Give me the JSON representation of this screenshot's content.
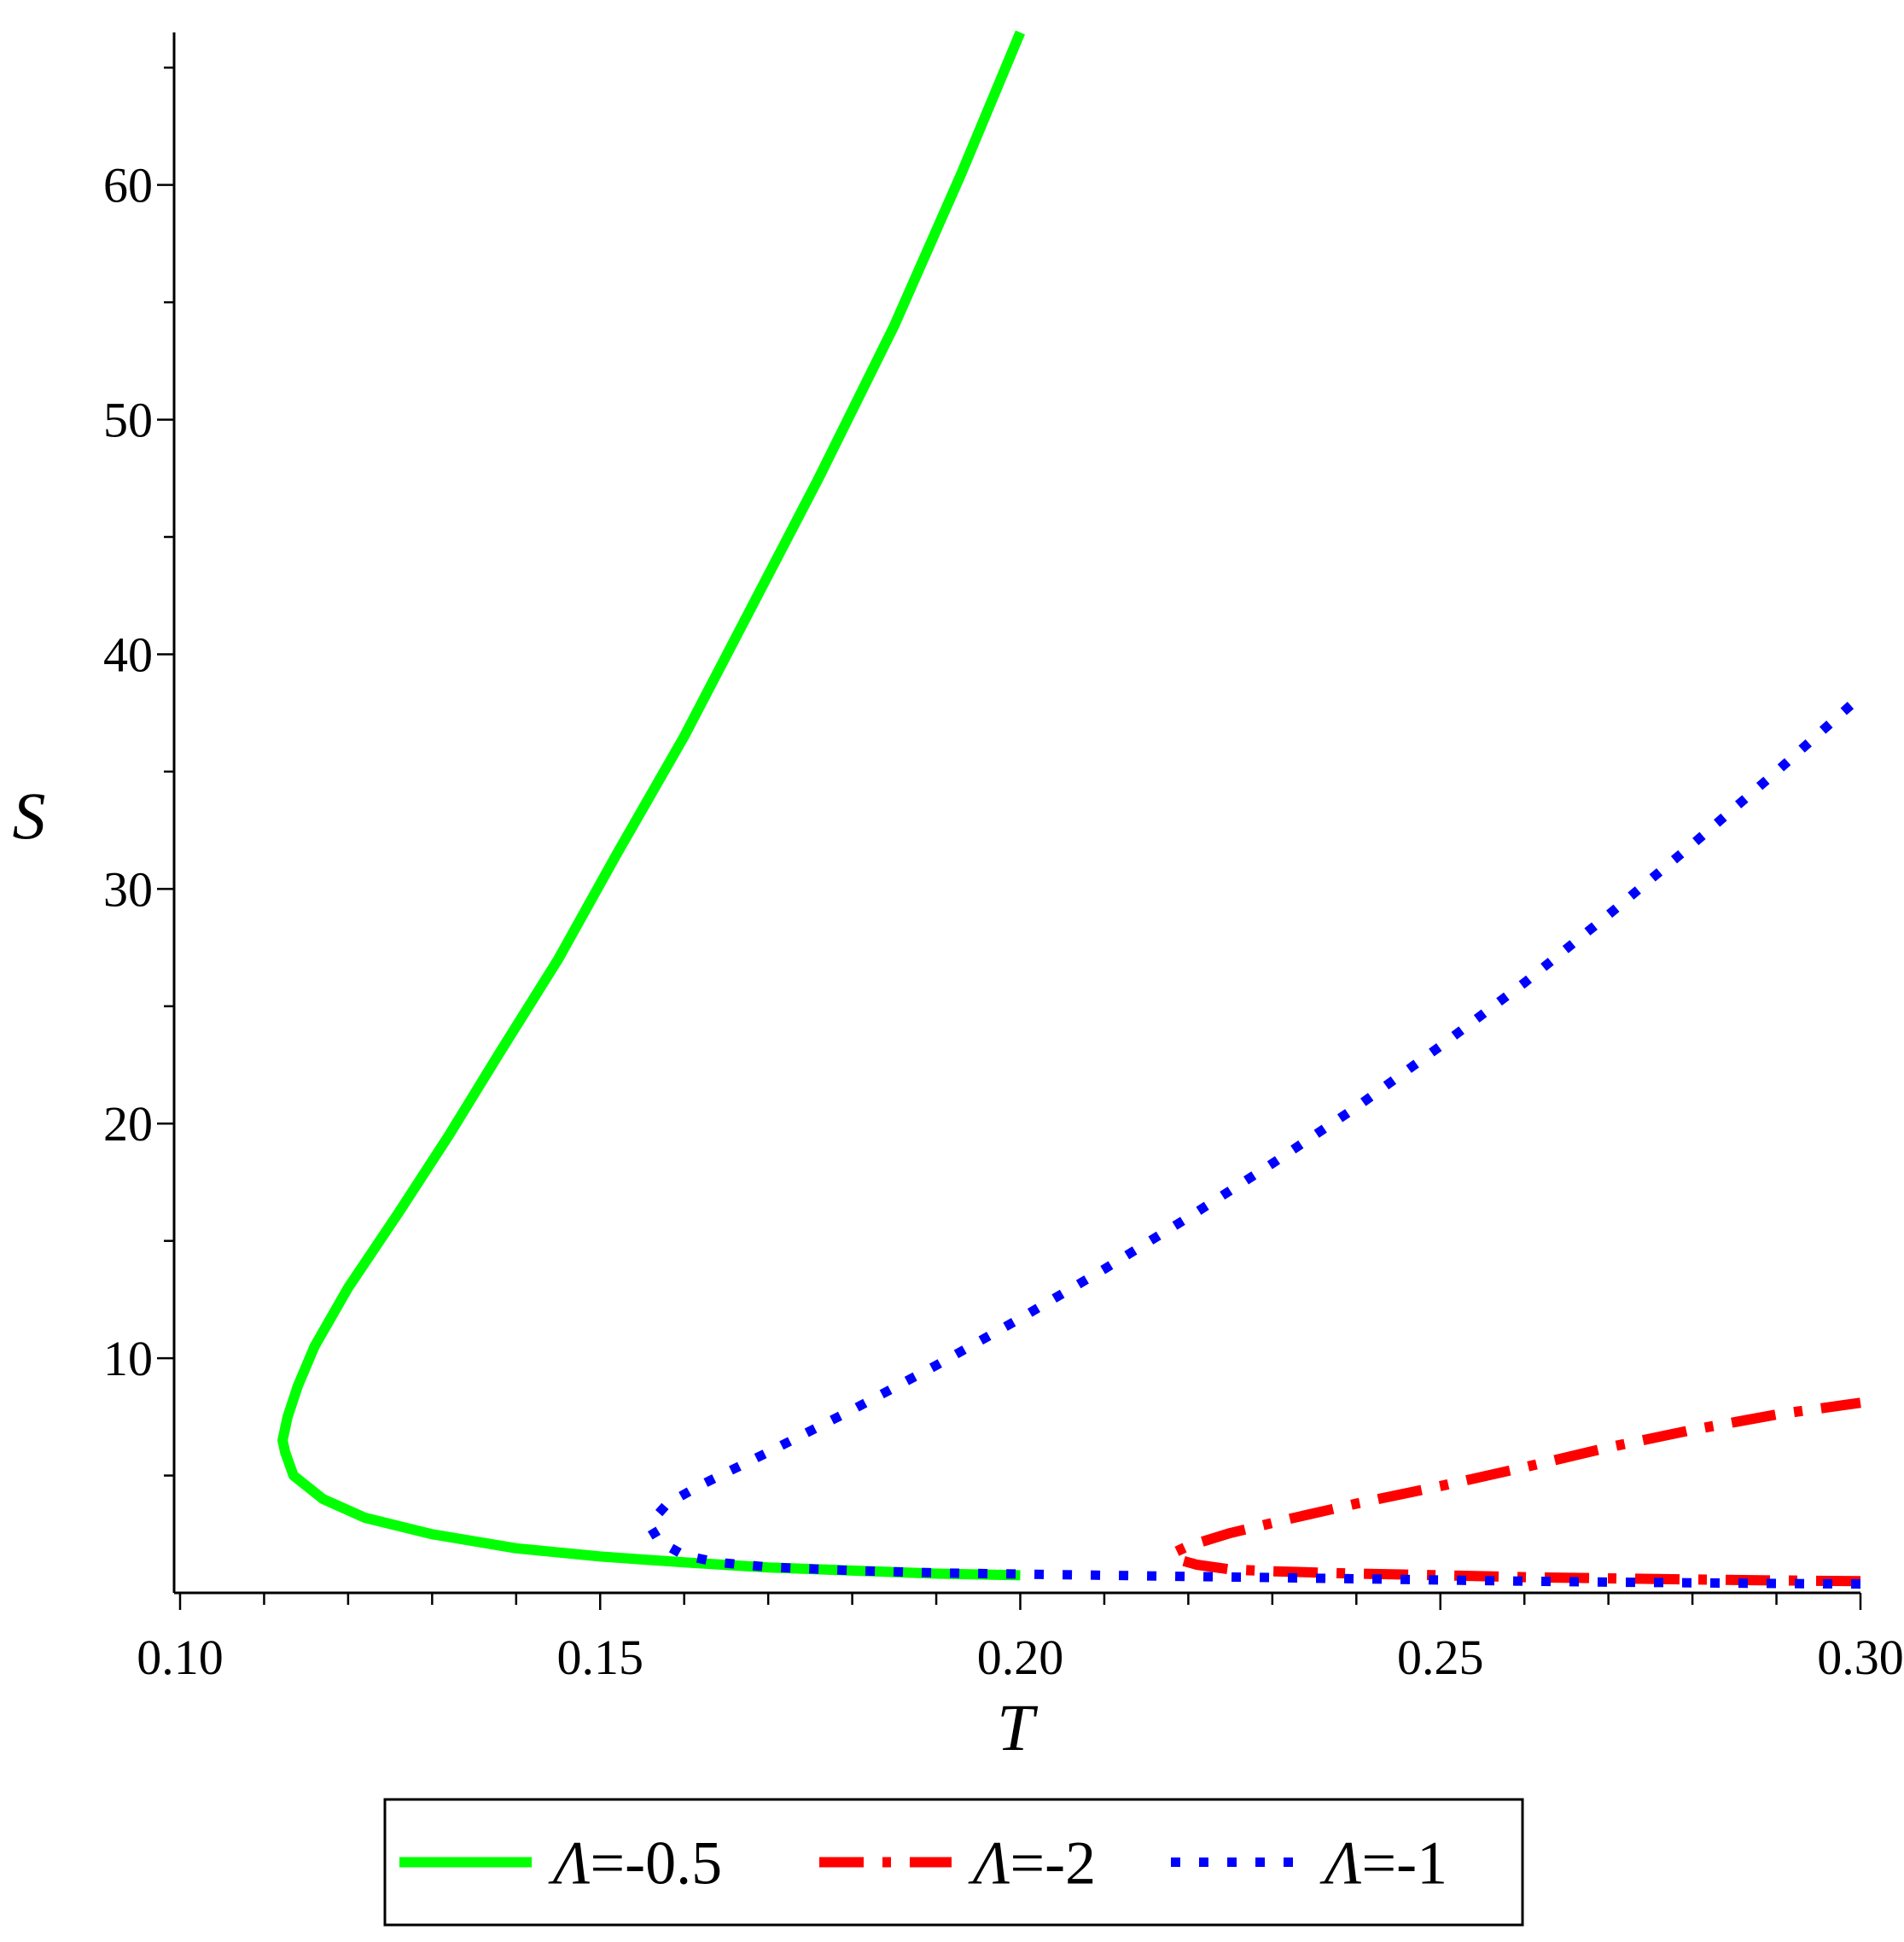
{
  "chart_data": {
    "type": "line",
    "xlabel": "T",
    "ylabel": "S",
    "xlim": [
      0.1,
      0.3
    ],
    "ylim": [
      0,
      66.5
    ],
    "x_ticks": [
      {
        "value": 0.1,
        "label": "0.10"
      },
      {
        "value": 0.15,
        "label": "0.15"
      },
      {
        "value": 0.2,
        "label": "0.20"
      },
      {
        "value": 0.25,
        "label": "0.25"
      },
      {
        "value": 0.3,
        "label": "0.30"
      }
    ],
    "y_ticks": [
      {
        "value": 10,
        "label": "10"
      },
      {
        "value": 20,
        "label": "20"
      },
      {
        "value": 30,
        "label": "30"
      },
      {
        "value": 40,
        "label": "40"
      },
      {
        "value": 50,
        "label": "50"
      },
      {
        "value": 60,
        "label": "60"
      }
    ],
    "grid": false,
    "legend_position": "bottom",
    "series": [
      {
        "name": "Λ=-0.5",
        "legend_symbol": "Λ",
        "legend_value": "=-0.5",
        "color": "#00ff00",
        "style": "solid",
        "points": [
          [
            0.2,
            0.75
          ],
          [
            0.19,
            0.82
          ],
          [
            0.18,
            0.95
          ],
          [
            0.17,
            1.08
          ],
          [
            0.16,
            1.3
          ],
          [
            0.15,
            1.55
          ],
          [
            0.14,
            1.9
          ],
          [
            0.13,
            2.5
          ],
          [
            0.122,
            3.2
          ],
          [
            0.117,
            4.0
          ],
          [
            0.1135,
            5.0
          ],
          [
            0.1125,
            6.0
          ],
          [
            0.1122,
            6.5
          ],
          [
            0.1128,
            7.5
          ],
          [
            0.114,
            8.8
          ],
          [
            0.116,
            10.5
          ],
          [
            0.12,
            13.0
          ],
          [
            0.126,
            16.2
          ],
          [
            0.132,
            19.5
          ],
          [
            0.138,
            23.0
          ],
          [
            0.145,
            27.0
          ],
          [
            0.152,
            31.5
          ],
          [
            0.16,
            36.5
          ],
          [
            0.168,
            42.0
          ],
          [
            0.176,
            47.5
          ],
          [
            0.185,
            54.0
          ],
          [
            0.193,
            60.5
          ],
          [
            0.2,
            66.5
          ]
        ]
      },
      {
        "name": "Λ=-2",
        "legend_symbol": "Λ",
        "legend_value": "=-2",
        "color": "#ff0000",
        "style": "dashdot",
        "points": [
          [
            0.3,
            0.5
          ],
          [
            0.29,
            0.53
          ],
          [
            0.28,
            0.57
          ],
          [
            0.27,
            0.62
          ],
          [
            0.26,
            0.67
          ],
          [
            0.25,
            0.75
          ],
          [
            0.24,
            0.82
          ],
          [
            0.23,
            0.92
          ],
          [
            0.225,
            1.0
          ],
          [
            0.221,
            1.2
          ],
          [
            0.2185,
            1.45
          ],
          [
            0.2182,
            1.7
          ],
          [
            0.22,
            2.0
          ],
          [
            0.225,
            2.55
          ],
          [
            0.232,
            3.15
          ],
          [
            0.24,
            3.8
          ],
          [
            0.25,
            4.55
          ],
          [
            0.26,
            5.35
          ],
          [
            0.27,
            6.2
          ],
          [
            0.28,
            6.95
          ],
          [
            0.29,
            7.6
          ],
          [
            0.3,
            8.1
          ]
        ]
      },
      {
        "name": "Λ=-1",
        "legend_symbol": "Λ",
        "legend_value": "=-1",
        "color": "#0000ff",
        "style": "dotted",
        "points": [
          [
            0.3,
            0.38
          ],
          [
            0.29,
            0.4
          ],
          [
            0.28,
            0.43
          ],
          [
            0.27,
            0.46
          ],
          [
            0.26,
            0.5
          ],
          [
            0.25,
            0.55
          ],
          [
            0.24,
            0.6
          ],
          [
            0.23,
            0.65
          ],
          [
            0.22,
            0.7
          ],
          [
            0.21,
            0.75
          ],
          [
            0.2,
            0.8
          ],
          [
            0.19,
            0.85
          ],
          [
            0.18,
            0.95
          ],
          [
            0.17,
            1.1
          ],
          [
            0.164,
            1.3
          ],
          [
            0.16,
            1.6
          ],
          [
            0.157,
            2.2
          ],
          [
            0.156,
            2.8
          ],
          [
            0.1565,
            3.2
          ],
          [
            0.158,
            3.8
          ],
          [
            0.162,
            4.6
          ],
          [
            0.17,
            6.0
          ],
          [
            0.18,
            7.8
          ],
          [
            0.19,
            9.7
          ],
          [
            0.2,
            11.7
          ],
          [
            0.21,
            13.8
          ],
          [
            0.22,
            16.0
          ],
          [
            0.23,
            18.3
          ],
          [
            0.24,
            20.7
          ],
          [
            0.25,
            23.3
          ],
          [
            0.26,
            26.0
          ],
          [
            0.27,
            28.9
          ],
          [
            0.28,
            31.9
          ],
          [
            0.29,
            35.0
          ],
          [
            0.3,
            38.2
          ]
        ]
      }
    ]
  }
}
